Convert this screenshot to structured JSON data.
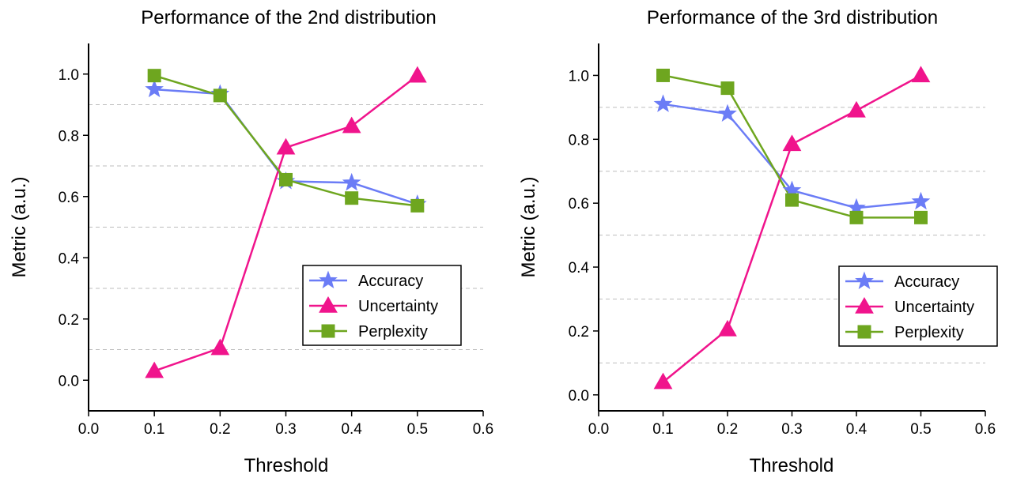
{
  "chart_data": [
    {
      "type": "line",
      "title": "Performance of the 2nd distribution",
      "xlabel": "Threshold",
      "ylabel": "Metric (a.u.)",
      "xlim": [
        0.0,
        0.6
      ],
      "ylim": [
        -0.1,
        1.1
      ],
      "xticks": [
        "0.0",
        "0.1",
        "0.2",
        "0.3",
        "0.4",
        "0.5",
        "0.6"
      ],
      "yticks": [
        "0.0",
        "0.2",
        "0.4",
        "0.6",
        "0.8",
        "1.0"
      ],
      "grid_y": [
        0.1,
        0.3,
        0.5,
        0.7,
        0.9
      ],
      "legend_position": "center-right",
      "x": [
        0.1,
        0.2,
        0.3,
        0.4,
        0.5
      ],
      "series": [
        {
          "name": "Accuracy",
          "marker": "star",
          "color": "#6b7cf6",
          "values": [
            0.95,
            0.935,
            0.65,
            0.645,
            0.575
          ]
        },
        {
          "name": "Uncertainty",
          "marker": "triangle",
          "color": "#f0148c",
          "values": [
            0.03,
            0.105,
            0.76,
            0.83,
            0.995
          ]
        },
        {
          "name": "Perplexity",
          "marker": "square",
          "color": "#6ea61f",
          "values": [
            0.995,
            0.93,
            0.655,
            0.595,
            0.57
          ]
        }
      ]
    },
    {
      "type": "line",
      "title": "Performance of the 3rd distribution",
      "xlabel": "Threshold",
      "ylabel": "Metric (a.u.)",
      "xlim": [
        0.0,
        0.6
      ],
      "ylim": [
        -0.05,
        1.1
      ],
      "xticks": [
        "0.0",
        "0.1",
        "0.2",
        "0.3",
        "0.4",
        "0.5",
        "0.6"
      ],
      "yticks": [
        "0.0",
        "0.2",
        "0.4",
        "0.6",
        "0.8",
        "1.0"
      ],
      "grid_y": [
        0.1,
        0.3,
        0.5,
        0.7,
        0.9
      ],
      "legend_position": "center-right",
      "x": [
        0.1,
        0.2,
        0.3,
        0.4,
        0.5
      ],
      "series": [
        {
          "name": "Accuracy",
          "marker": "star",
          "color": "#6b7cf6",
          "values": [
            0.91,
            0.88,
            0.64,
            0.585,
            0.605
          ]
        },
        {
          "name": "Uncertainty",
          "marker": "triangle",
          "color": "#f0148c",
          "values": [
            0.04,
            0.205,
            0.785,
            0.89,
            1.0
          ]
        },
        {
          "name": "Perplexity",
          "marker": "square",
          "color": "#6ea61f",
          "values": [
            1.0,
            0.96,
            0.61,
            0.555,
            0.555
          ]
        }
      ]
    }
  ]
}
